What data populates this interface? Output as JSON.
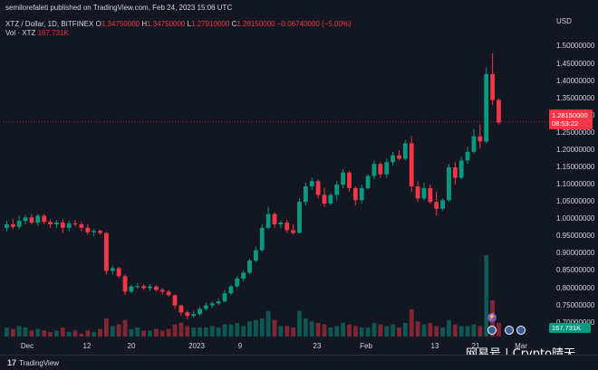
{
  "header": {
    "published": "semilorefaleti published on TradingView.com, Feb 24, 2023 15:06 UTC",
    "symbol": "XTZ / Dollar, 1D, BITFINEX",
    "o_label": "O",
    "o_value": "1.34750000",
    "h_label": "H",
    "h_value": "1.34750000",
    "l_label": "L",
    "l_value": "1.27910000",
    "c_label": "C",
    "c_value": "1.28150000",
    "change": "−0.06740000 (−5.00%)",
    "vol_label": "Vol · XTZ",
    "vol_value": "167.731K"
  },
  "price_axis": {
    "currency": "USD",
    "labels": [
      "1.50000000",
      "1.45000000",
      "1.40000000",
      "1.35000000",
      "1.30000000",
      "1.25000000",
      "1.20000000",
      "1.15000000",
      "1.10000000",
      "1.05000000",
      "1.00000000",
      "0.95000000",
      "0.90000000",
      "0.85000000",
      "0.80000000",
      "0.75000000",
      "0.70000000"
    ],
    "current_price": "1.28150000",
    "countdown": "08:53:22",
    "volume_tag": "167.731K"
  },
  "time_axis": {
    "labels": [
      "Dec",
      "12",
      "20",
      "2023",
      "9",
      "23",
      "Feb",
      "13",
      "21",
      "Mar"
    ]
  },
  "footer": {
    "brand": "TradingView",
    "watermark": "网易号 | Crypto晴天"
  },
  "colors": {
    "up": "#089981",
    "down": "#f23645",
    "background": "#131722",
    "text": "#d1d4dc"
  },
  "chart_data": {
    "type": "candlestick",
    "symbol": "XTZ / Dollar",
    "interval": "1D",
    "exchange": "BITFINEX",
    "ylim": [
      0.66,
      1.53
    ],
    "x_start_label": "Dec",
    "candles": [
      {
        "o": 0.975,
        "h": 0.995,
        "l": 0.965,
        "c": 0.985
      },
      {
        "o": 0.985,
        "h": 1.0,
        "l": 0.972,
        "c": 0.978
      },
      {
        "o": 0.978,
        "h": 1.01,
        "l": 0.97,
        "c": 0.995
      },
      {
        "o": 0.995,
        "h": 1.012,
        "l": 0.985,
        "c": 1.005
      },
      {
        "o": 1.005,
        "h": 1.015,
        "l": 0.985,
        "c": 0.99
      },
      {
        "o": 0.99,
        "h": 1.015,
        "l": 0.98,
        "c": 1.01
      },
      {
        "o": 1.01,
        "h": 1.015,
        "l": 0.985,
        "c": 0.992
      },
      {
        "o": 0.992,
        "h": 1.0,
        "l": 0.975,
        "c": 0.985
      },
      {
        "o": 0.985,
        "h": 0.998,
        "l": 0.975,
        "c": 0.99
      },
      {
        "o": 0.99,
        "h": 1.0,
        "l": 0.96,
        "c": 0.975
      },
      {
        "o": 0.975,
        "h": 0.995,
        "l": 0.965,
        "c": 0.988
      },
      {
        "o": 0.988,
        "h": 0.998,
        "l": 0.978,
        "c": 0.985
      },
      {
        "o": 0.985,
        "h": 0.992,
        "l": 0.965,
        "c": 0.975
      },
      {
        "o": 0.975,
        "h": 0.985,
        "l": 0.955,
        "c": 0.962
      },
      {
        "o": 0.962,
        "h": 0.972,
        "l": 0.95,
        "c": 0.966
      },
      {
        "o": 0.966,
        "h": 0.97,
        "l": 0.955,
        "c": 0.96
      },
      {
        "o": 0.96,
        "h": 0.962,
        "l": 0.84,
        "c": 0.85
      },
      {
        "o": 0.85,
        "h": 0.865,
        "l": 0.84,
        "c": 0.858
      },
      {
        "o": 0.858,
        "h": 0.862,
        "l": 0.83,
        "c": 0.835
      },
      {
        "o": 0.835,
        "h": 0.84,
        "l": 0.78,
        "c": 0.79
      },
      {
        "o": 0.79,
        "h": 0.81,
        "l": 0.785,
        "c": 0.805
      },
      {
        "o": 0.805,
        "h": 0.815,
        "l": 0.798,
        "c": 0.806
      },
      {
        "o": 0.806,
        "h": 0.812,
        "l": 0.795,
        "c": 0.8
      },
      {
        "o": 0.8,
        "h": 0.812,
        "l": 0.792,
        "c": 0.805
      },
      {
        "o": 0.805,
        "h": 0.808,
        "l": 0.79,
        "c": 0.795
      },
      {
        "o": 0.795,
        "h": 0.8,
        "l": 0.782,
        "c": 0.79
      },
      {
        "o": 0.79,
        "h": 0.795,
        "l": 0.775,
        "c": 0.78
      },
      {
        "o": 0.78,
        "h": 0.782,
        "l": 0.74,
        "c": 0.75
      },
      {
        "o": 0.75,
        "h": 0.752,
        "l": 0.72,
        "c": 0.73
      },
      {
        "o": 0.73,
        "h": 0.735,
        "l": 0.71,
        "c": 0.72
      },
      {
        "o": 0.72,
        "h": 0.735,
        "l": 0.715,
        "c": 0.725
      },
      {
        "o": 0.725,
        "h": 0.745,
        "l": 0.72,
        "c": 0.74
      },
      {
        "o": 0.74,
        "h": 0.758,
        "l": 0.735,
        "c": 0.75
      },
      {
        "o": 0.75,
        "h": 0.762,
        "l": 0.742,
        "c": 0.756
      },
      {
        "o": 0.756,
        "h": 0.77,
        "l": 0.75,
        "c": 0.762
      },
      {
        "o": 0.762,
        "h": 0.795,
        "l": 0.758,
        "c": 0.785
      },
      {
        "o": 0.785,
        "h": 0.81,
        "l": 0.78,
        "c": 0.805
      },
      {
        "o": 0.805,
        "h": 0.835,
        "l": 0.8,
        "c": 0.828
      },
      {
        "o": 0.828,
        "h": 0.85,
        "l": 0.82,
        "c": 0.845
      },
      {
        "o": 0.845,
        "h": 0.885,
        "l": 0.84,
        "c": 0.88
      },
      {
        "o": 0.88,
        "h": 0.92,
        "l": 0.875,
        "c": 0.91
      },
      {
        "o": 0.91,
        "h": 0.985,
        "l": 0.905,
        "c": 0.975
      },
      {
        "o": 0.975,
        "h": 1.035,
        "l": 0.97,
        "c": 1.015
      },
      {
        "o": 1.015,
        "h": 1.02,
        "l": 0.975,
        "c": 0.985
      },
      {
        "o": 0.985,
        "h": 0.995,
        "l": 0.975,
        "c": 0.99
      },
      {
        "o": 0.99,
        "h": 0.998,
        "l": 0.96,
        "c": 0.968
      },
      {
        "o": 0.968,
        "h": 0.985,
        "l": 0.955,
        "c": 0.96
      },
      {
        "o": 0.96,
        "h": 1.06,
        "l": 0.958,
        "c": 1.05
      },
      {
        "o": 1.05,
        "h": 1.105,
        "l": 1.04,
        "c": 1.095
      },
      {
        "o": 1.095,
        "h": 1.12,
        "l": 1.085,
        "c": 1.11
      },
      {
        "o": 1.11,
        "h": 1.115,
        "l": 1.06,
        "c": 1.07
      },
      {
        "o": 1.07,
        "h": 1.09,
        "l": 1.035,
        "c": 1.045
      },
      {
        "o": 1.045,
        "h": 1.075,
        "l": 1.04,
        "c": 1.07
      },
      {
        "o": 1.07,
        "h": 1.11,
        "l": 1.055,
        "c": 1.1
      },
      {
        "o": 1.1,
        "h": 1.145,
        "l": 1.09,
        "c": 1.135
      },
      {
        "o": 1.135,
        "h": 1.14,
        "l": 1.08,
        "c": 1.09
      },
      {
        "o": 1.09,
        "h": 1.095,
        "l": 1.04,
        "c": 1.055
      },
      {
        "o": 1.055,
        "h": 1.1,
        "l": 1.045,
        "c": 1.09
      },
      {
        "o": 1.09,
        "h": 1.13,
        "l": 1.085,
        "c": 1.125
      },
      {
        "o": 1.125,
        "h": 1.17,
        "l": 1.115,
        "c": 1.16
      },
      {
        "o": 1.16,
        "h": 1.165,
        "l": 1.12,
        "c": 1.13
      },
      {
        "o": 1.13,
        "h": 1.175,
        "l": 1.12,
        "c": 1.165
      },
      {
        "o": 1.165,
        "h": 1.195,
        "l": 1.155,
        "c": 1.185
      },
      {
        "o": 1.185,
        "h": 1.2,
        "l": 1.17,
        "c": 1.175
      },
      {
        "o": 1.175,
        "h": 1.23,
        "l": 1.17,
        "c": 1.22
      },
      {
        "o": 1.22,
        "h": 1.24,
        "l": 1.08,
        "c": 1.095
      },
      {
        "o": 1.095,
        "h": 1.11,
        "l": 1.05,
        "c": 1.06
      },
      {
        "o": 1.06,
        "h": 1.105,
        "l": 1.055,
        "c": 1.09
      },
      {
        "o": 1.09,
        "h": 1.1,
        "l": 1.045,
        "c": 1.05
      },
      {
        "o": 1.05,
        "h": 1.08,
        "l": 1.01,
        "c": 1.03
      },
      {
        "o": 1.03,
        "h": 1.06,
        "l": 1.025,
        "c": 1.055
      },
      {
        "o": 1.055,
        "h": 1.16,
        "l": 1.05,
        "c": 1.15
      },
      {
        "o": 1.15,
        "h": 1.165,
        "l": 1.1,
        "c": 1.12
      },
      {
        "o": 1.12,
        "h": 1.18,
        "l": 1.115,
        "c": 1.17
      },
      {
        "o": 1.17,
        "h": 1.21,
        "l": 1.16,
        "c": 1.195
      },
      {
        "o": 1.195,
        "h": 1.26,
        "l": 1.19,
        "c": 1.24
      },
      {
        "o": 1.24,
        "h": 1.275,
        "l": 1.205,
        "c": 1.225
      },
      {
        "o": 1.225,
        "h": 1.44,
        "l": 1.22,
        "c": 1.42
      },
      {
        "o": 1.42,
        "h": 1.48,
        "l": 1.33,
        "c": 1.345
      },
      {
        "o": 1.345,
        "h": 1.35,
        "l": 1.275,
        "c": 1.28
      }
    ],
    "volumes": [
      0.3,
      0.25,
      0.35,
      0.3,
      0.2,
      0.25,
      0.2,
      0.15,
      0.2,
      0.3,
      0.15,
      0.2,
      0.1,
      0.2,
      0.15,
      0.25,
      0.6,
      0.35,
      0.4,
      0.55,
      0.25,
      0.3,
      0.2,
      0.2,
      0.25,
      0.2,
      0.25,
      0.4,
      0.45,
      0.35,
      0.3,
      0.3,
      0.3,
      0.35,
      0.3,
      0.4,
      0.4,
      0.45,
      0.35,
      0.5,
      0.55,
      0.6,
      0.85,
      0.55,
      0.35,
      0.35,
      0.3,
      0.85,
      0.6,
      0.5,
      0.45,
      0.4,
      0.3,
      0.35,
      0.45,
      0.4,
      0.35,
      0.3,
      0.3,
      0.45,
      0.4,
      0.35,
      0.4,
      0.3,
      0.45,
      0.9,
      0.5,
      0.4,
      0.45,
      0.35,
      0.3,
      0.55,
      0.4,
      0.35,
      0.35,
      0.4,
      0.35,
      2.7,
      1.2,
      0.45
    ]
  }
}
